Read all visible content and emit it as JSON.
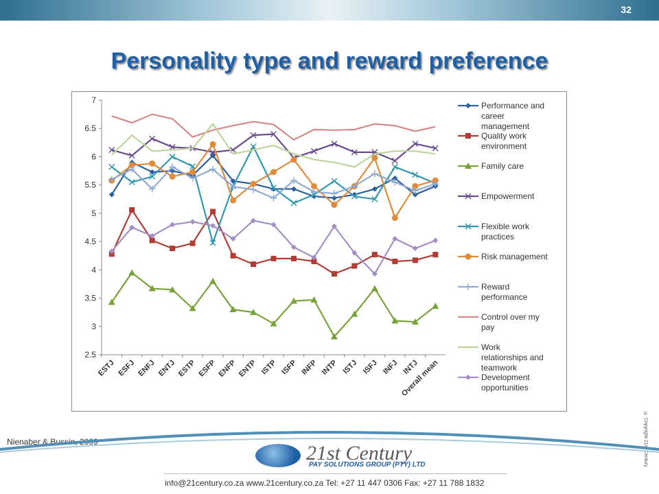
{
  "slide": {
    "number": "32",
    "title": "Personality type and reward preference",
    "citation": "Nienaber & Bussin, 2009",
    "copyright": "© Copyright 21st Century"
  },
  "footer": {
    "logo_main": "21st Century",
    "logo_sub": "PAY SOLUTIONS GROUP (PTY) LTD",
    "contact": "info@21century.co.za   www.21century.co.za   Tel: +27 11 447 0306   Fax: +27 11 788 1832"
  },
  "colors": {
    "accent": "#1f5fa6"
  },
  "chart_data": {
    "type": "line",
    "title": "",
    "xlabel": "",
    "ylabel": "",
    "ylim": [
      2.5,
      7
    ],
    "yticks": [
      "2.5",
      "3",
      "3.5",
      "4",
      "4.5",
      "5",
      "5.5",
      "6",
      "6.5",
      "7"
    ],
    "grid": false,
    "legend_position": "right",
    "categories": [
      "ESTJ",
      "ESFJ",
      "ENFJ",
      "ENTJ",
      "ESTP",
      "ESFP",
      "ENFP",
      "ENTP",
      "ISTP",
      "ISFP",
      "INFP",
      "INTP",
      "ISTJ",
      "ISFJ",
      "INFJ",
      "INTJ",
      "Overall mean"
    ],
    "series": [
      {
        "name": "Performance and career management",
        "color": "#2e5fa0",
        "marker": "diamond",
        "values": [
          5.33,
          5.9,
          5.73,
          5.75,
          5.67,
          6.02,
          5.57,
          5.52,
          5.43,
          5.43,
          5.3,
          5.27,
          5.33,
          5.43,
          5.62,
          5.33,
          5.48
        ]
      },
      {
        "name": "Quality work environment",
        "color": "#b23b36",
        "marker": "square",
        "values": [
          4.28,
          5.06,
          4.52,
          4.38,
          4.47,
          5.03,
          4.25,
          4.1,
          4.2,
          4.2,
          4.15,
          3.93,
          4.07,
          4.27,
          4.15,
          4.17,
          4.27
        ]
      },
      {
        "name": "Family care",
        "color": "#77a33a",
        "marker": "triangle",
        "values": [
          3.43,
          3.95,
          3.67,
          3.65,
          3.32,
          3.8,
          3.3,
          3.25,
          3.05,
          3.45,
          3.47,
          2.82,
          3.22,
          3.67,
          3.1,
          3.08,
          3.36
        ]
      },
      {
        "name": "Empowerment",
        "color": "#6a4a91",
        "marker": "x",
        "values": [
          6.12,
          6.02,
          6.32,
          6.17,
          6.15,
          6.08,
          6.12,
          6.38,
          6.4,
          5.98,
          6.1,
          6.23,
          6.08,
          6.08,
          5.93,
          6.23,
          6.15
        ]
      },
      {
        "name": "Flexible work practices",
        "color": "#3297b0",
        "marker": "x",
        "values": [
          5.82,
          5.55,
          5.65,
          6.0,
          5.83,
          4.48,
          5.48,
          6.18,
          5.45,
          5.18,
          5.33,
          5.57,
          5.3,
          5.25,
          5.82,
          5.68,
          5.53
        ]
      },
      {
        "name": "Risk management",
        "color": "#e08b3a",
        "marker": "circle",
        "values": [
          5.58,
          5.85,
          5.88,
          5.65,
          5.73,
          6.22,
          5.23,
          5.52,
          5.73,
          5.95,
          5.48,
          5.15,
          5.48,
          5.98,
          4.92,
          5.48,
          5.58
        ]
      },
      {
        "name": "Reward performance",
        "color": "#8fa9d3",
        "marker": "plus",
        "values": [
          5.6,
          5.78,
          5.43,
          5.82,
          5.62,
          5.78,
          5.47,
          5.42,
          5.27,
          5.58,
          5.38,
          5.35,
          5.48,
          5.7,
          5.55,
          5.4,
          5.52
        ]
      },
      {
        "name": "Control over my pay",
        "color": "#d58a89",
        "marker": "none",
        "values": [
          6.72,
          6.6,
          6.75,
          6.67,
          6.35,
          6.47,
          6.55,
          6.62,
          6.57,
          6.3,
          6.48,
          6.47,
          6.48,
          6.58,
          6.55,
          6.45,
          6.53
        ]
      },
      {
        "name": "Work relationships and teamwork",
        "color": "#bcd59a",
        "marker": "none",
        "values": [
          6.03,
          6.38,
          6.1,
          6.12,
          6.15,
          6.58,
          6.05,
          6.12,
          6.2,
          6.05,
          5.95,
          5.9,
          5.82,
          6.05,
          6.1,
          6.1,
          6.05
        ]
      },
      {
        "name": "Development opportunities",
        "color": "#a48fc4",
        "marker": "diamond",
        "values": [
          4.33,
          4.75,
          4.6,
          4.8,
          4.85,
          4.78,
          4.55,
          4.87,
          4.8,
          4.4,
          4.22,
          4.77,
          4.3,
          3.93,
          4.55,
          4.38,
          4.52
        ]
      }
    ]
  }
}
